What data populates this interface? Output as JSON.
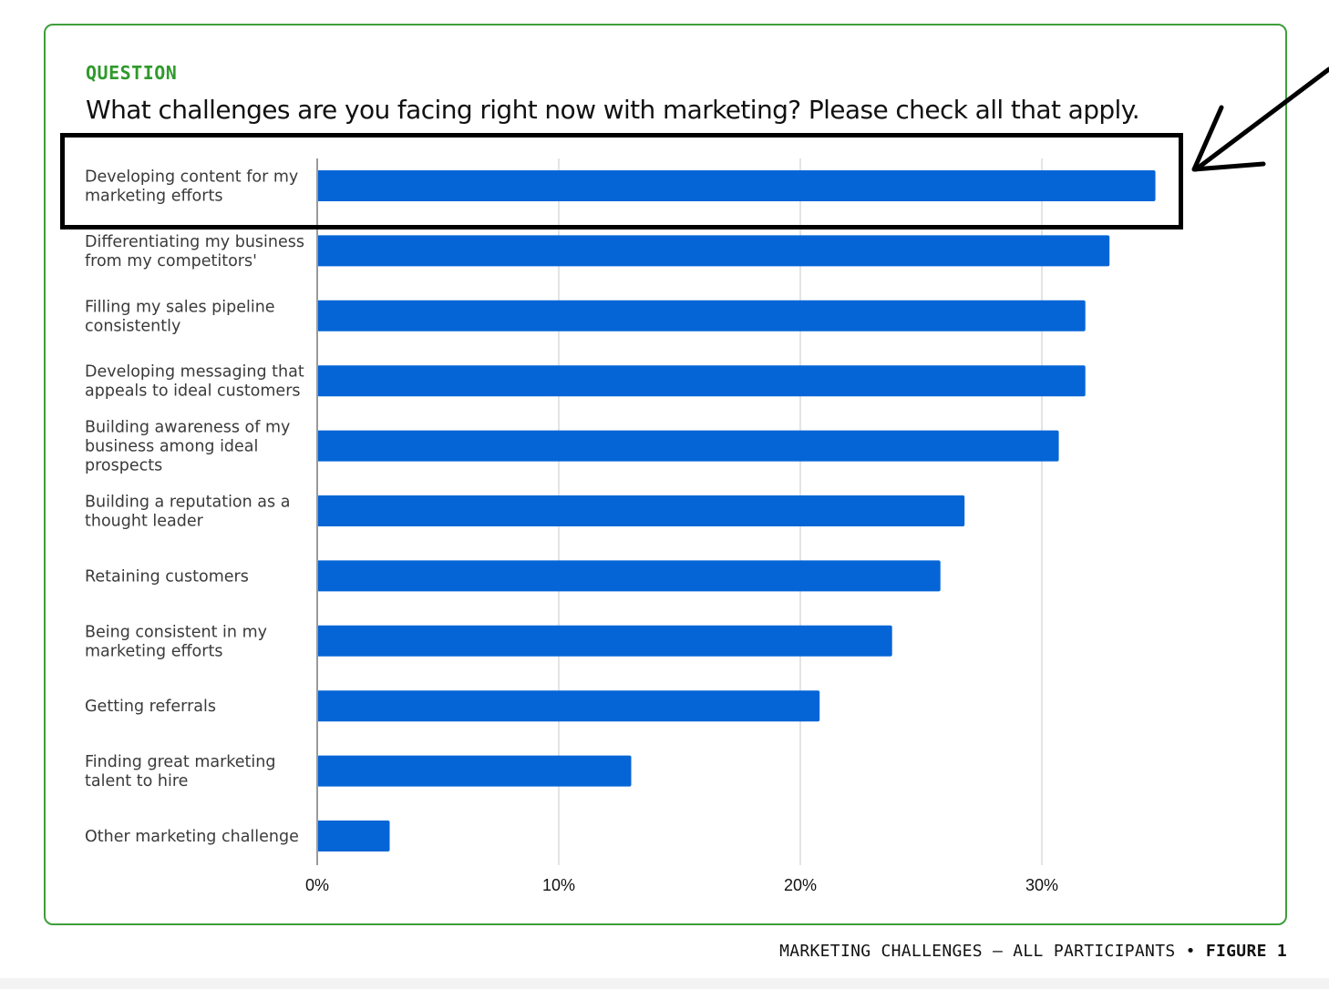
{
  "question": {
    "label": "QUESTION",
    "text": "What challenges are you facing right now with marketing? Please check all that apply."
  },
  "caption": {
    "main": "MARKETING CHALLENGES – ALL PARTICIPANTS",
    "separator": "•",
    "figure": "FIGURE 1"
  },
  "colors": {
    "bar": "#0565d6",
    "frame": "#3f9e3a",
    "label": "#2f9a2b"
  },
  "chart_data": {
    "type": "bar",
    "orientation": "horizontal",
    "categories": [
      [
        "Developing content for my",
        "marketing efforts"
      ],
      [
        "Differentiating my business",
        "from my competitors'"
      ],
      [
        "Filling my sales pipeline",
        "consistently"
      ],
      [
        "Developing messaging that",
        "appeals to ideal customers"
      ],
      [
        "Building awareness of my",
        "business among ideal",
        "prospects"
      ],
      [
        "Building a reputation as a",
        "thought leader"
      ],
      [
        "Retaining customers"
      ],
      [
        "Being consistent in my",
        "marketing efforts"
      ],
      [
        "Getting referrals"
      ],
      [
        "Finding great marketing",
        "talent to hire"
      ],
      [
        "Other marketing challenge"
      ]
    ],
    "values": [
      34.7,
      32.8,
      31.8,
      31.8,
      30.7,
      26.8,
      25.8,
      23.8,
      20.8,
      13.0,
      3.0
    ],
    "xlim": [
      0,
      40
    ],
    "xticks": [
      0,
      10,
      20,
      30
    ],
    "tick_labels": [
      "0%",
      "10%",
      "20%",
      "30%"
    ],
    "grid": true,
    "highlighted_category": 0
  }
}
